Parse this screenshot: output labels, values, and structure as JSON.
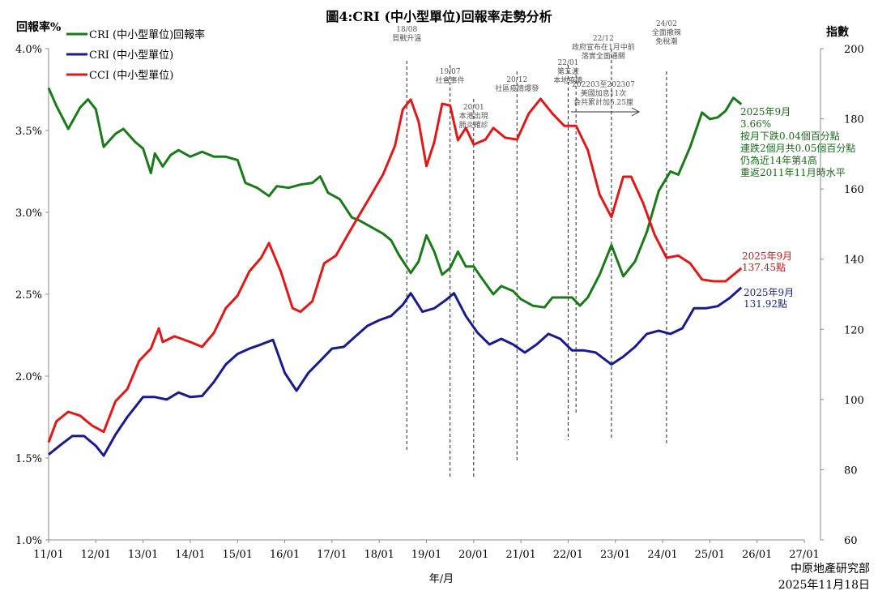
{
  "chart_data": {
    "type": "line",
    "title": "圖4:CRI (中小型單位)回報率走勢分析",
    "ylabel_left": "回報率%",
    "ylabel_right": "指數",
    "xlabel": "年/月",
    "ylim_left": [
      1.0,
      4.0
    ],
    "ylim_right": [
      60,
      200
    ],
    "xlim": [
      "2011-01",
      "2027-01"
    ],
    "y_ticks_left": [
      "1.0%",
      "1.5%",
      "2.0%",
      "2.5%",
      "3.0%",
      "3.5%",
      "4.0%"
    ],
    "y_ticks_right": [
      "60",
      "80",
      "100",
      "120",
      "140",
      "160",
      "180",
      "200"
    ],
    "x_ticks": [
      "11/01",
      "12/01",
      "13/01",
      "14/01",
      "15/01",
      "16/01",
      "17/01",
      "18/01",
      "19/01",
      "20/01",
      "21/01",
      "22/01",
      "23/01",
      "24/01",
      "25/01",
      "26/01",
      "27/01"
    ],
    "grid": false,
    "legend_placement": "top-left",
    "series": [
      {
        "name": "CRI (中小型單位)回報率",
        "axis": "left",
        "color": "#1a7a1a",
        "points": [
          [
            "2011-01",
            3.76
          ],
          [
            "2011-03",
            3.65
          ],
          [
            "2011-06",
            3.51
          ],
          [
            "2011-09",
            3.64
          ],
          [
            "2011-11",
            3.69
          ],
          [
            "2012-01",
            3.63
          ],
          [
            "2012-03",
            3.4
          ],
          [
            "2012-06",
            3.48
          ],
          [
            "2012-08",
            3.51
          ],
          [
            "2012-11",
            3.43
          ],
          [
            "2013-01",
            3.39
          ],
          [
            "2013-03",
            3.24
          ],
          [
            "2013-04",
            3.36
          ],
          [
            "2013-06",
            3.28
          ],
          [
            "2013-08",
            3.35
          ],
          [
            "2013-10",
            3.38
          ],
          [
            "2014-01",
            3.34
          ],
          [
            "2014-04",
            3.37
          ],
          [
            "2014-07",
            3.34
          ],
          [
            "2014-10",
            3.34
          ],
          [
            "2015-01",
            3.32
          ],
          [
            "2015-03",
            3.18
          ],
          [
            "2015-06",
            3.15
          ],
          [
            "2015-09",
            3.1
          ],
          [
            "2015-11",
            3.16
          ],
          [
            "2016-02",
            3.15
          ],
          [
            "2016-05",
            3.17
          ],
          [
            "2016-08",
            3.18
          ],
          [
            "2016-10",
            3.22
          ],
          [
            "2016-12",
            3.12
          ],
          [
            "2017-03",
            3.08
          ],
          [
            "2017-06",
            2.97
          ],
          [
            "2017-08",
            2.95
          ],
          [
            "2017-11",
            2.91
          ],
          [
            "2018-02",
            2.87
          ],
          [
            "2018-04",
            2.83
          ],
          [
            "2018-06",
            2.74
          ],
          [
            "2018-09",
            2.63
          ],
          [
            "2018-11",
            2.7
          ],
          [
            "2019-01",
            2.86
          ],
          [
            "2019-03",
            2.76
          ],
          [
            "2019-05",
            2.62
          ],
          [
            "2019-07",
            2.66
          ],
          [
            "2019-09",
            2.76
          ],
          [
            "2019-11",
            2.67
          ],
          [
            "2020-01",
            2.67
          ],
          [
            "2020-03",
            2.6
          ],
          [
            "2020-06",
            2.5
          ],
          [
            "2020-08",
            2.55
          ],
          [
            "2020-11",
            2.52
          ],
          [
            "2021-01",
            2.47
          ],
          [
            "2021-04",
            2.43
          ],
          [
            "2021-07",
            2.42
          ],
          [
            "2021-09",
            2.48
          ],
          [
            "2021-12",
            2.48
          ],
          [
            "2022-02",
            2.48
          ],
          [
            "2022-04",
            2.43
          ],
          [
            "2022-06",
            2.48
          ],
          [
            "2022-09",
            2.62
          ],
          [
            "2022-12",
            2.8
          ],
          [
            "2023-03",
            2.61
          ],
          [
            "2023-06",
            2.7
          ],
          [
            "2023-09",
            2.88
          ],
          [
            "2023-12",
            3.13
          ],
          [
            "2024-03",
            3.25
          ],
          [
            "2024-05",
            3.23
          ],
          [
            "2024-08",
            3.4
          ],
          [
            "2024-11",
            3.61
          ],
          [
            "2025-01",
            3.57
          ],
          [
            "2025-03",
            3.58
          ],
          [
            "2025-05",
            3.62
          ],
          [
            "2025-07",
            3.7
          ],
          [
            "2025-09",
            3.66
          ]
        ]
      },
      {
        "name": "CRI (中小型單位)",
        "axis": "right",
        "color": "#1a1a8c",
        "points": [
          [
            "2011-01",
            84.3
          ],
          [
            "2011-04",
            87
          ],
          [
            "2011-07",
            89.6
          ],
          [
            "2011-10",
            89.6
          ],
          [
            "2012-01",
            86.8
          ],
          [
            "2012-03",
            84
          ],
          [
            "2012-06",
            90
          ],
          [
            "2012-09",
            95
          ],
          [
            "2013-01",
            100.7
          ],
          [
            "2013-04",
            100.7
          ],
          [
            "2013-07",
            100
          ],
          [
            "2013-10",
            102
          ],
          [
            "2014-01",
            100.7
          ],
          [
            "2014-04",
            101
          ],
          [
            "2014-07",
            105
          ],
          [
            "2014-10",
            110
          ],
          [
            "2015-01",
            113
          ],
          [
            "2015-04",
            114.5
          ],
          [
            "2015-07",
            115.7
          ],
          [
            "2015-10",
            117
          ],
          [
            "2016-01",
            107.6
          ],
          [
            "2016-04",
            102.5
          ],
          [
            "2016-07",
            107.6
          ],
          [
            "2016-10",
            111
          ],
          [
            "2017-01",
            114.5
          ],
          [
            "2017-04",
            115
          ],
          [
            "2017-07",
            118
          ],
          [
            "2017-10",
            121
          ],
          [
            "2018-01",
            122.6
          ],
          [
            "2018-04",
            123.8
          ],
          [
            "2018-07",
            127
          ],
          [
            "2018-09",
            130.3
          ],
          [
            "2018-12",
            125
          ],
          [
            "2019-03",
            126
          ],
          [
            "2019-06",
            128.4
          ],
          [
            "2019-08",
            130.3
          ],
          [
            "2019-11",
            123.8
          ],
          [
            "2020-02",
            119
          ],
          [
            "2020-05",
            115.7
          ],
          [
            "2020-08",
            117.3
          ],
          [
            "2020-11",
            115.7
          ],
          [
            "2021-02",
            113.4
          ],
          [
            "2021-05",
            115.7
          ],
          [
            "2021-08",
            118.7
          ],
          [
            "2021-11",
            117.3
          ],
          [
            "2022-02",
            114
          ],
          [
            "2022-05",
            114
          ],
          [
            "2022-08",
            113.4
          ],
          [
            "2022-12",
            110
          ],
          [
            "2023-03",
            112.2
          ],
          [
            "2023-06",
            115
          ],
          [
            "2023-09",
            118.7
          ],
          [
            "2023-12",
            119.6
          ],
          [
            "2024-03",
            118.7
          ],
          [
            "2024-06",
            120.3
          ],
          [
            "2024-09",
            126
          ],
          [
            "2024-12",
            126
          ],
          [
            "2025-03",
            126.6
          ],
          [
            "2025-06",
            128.9
          ],
          [
            "2025-09",
            131.92
          ]
        ]
      },
      {
        "name": "CCI (中小型單位)",
        "axis": "right",
        "color": "#e01818",
        "points": [
          [
            "2011-01",
            87.8
          ],
          [
            "2011-03",
            93.8
          ],
          [
            "2011-06",
            96.5
          ],
          [
            "2011-09",
            95.4
          ],
          [
            "2011-12",
            92.6
          ],
          [
            "2012-03",
            90.8
          ],
          [
            "2012-06",
            99.5
          ],
          [
            "2012-09",
            103
          ],
          [
            "2012-12",
            111
          ],
          [
            "2013-03",
            114.5
          ],
          [
            "2013-05",
            120.3
          ],
          [
            "2013-06",
            116.4
          ],
          [
            "2013-09",
            118
          ],
          [
            "2014-01",
            116.4
          ],
          [
            "2014-04",
            115
          ],
          [
            "2014-07",
            119
          ],
          [
            "2014-10",
            126
          ],
          [
            "2015-01",
            129.6
          ],
          [
            "2015-04",
            136.5
          ],
          [
            "2015-07",
            140.4
          ],
          [
            "2015-09",
            144.6
          ],
          [
            "2015-12",
            136.5
          ],
          [
            "2016-03",
            126
          ],
          [
            "2016-05",
            125
          ],
          [
            "2016-08",
            128
          ],
          [
            "2016-11",
            138.8
          ],
          [
            "2017-02",
            141
          ],
          [
            "2017-05",
            146.9
          ],
          [
            "2017-08",
            152.7
          ],
          [
            "2017-11",
            158.4
          ],
          [
            "2018-02",
            164.2
          ],
          [
            "2018-05",
            172.3
          ],
          [
            "2018-07",
            182.7
          ],
          [
            "2018-09",
            185.5
          ],
          [
            "2018-11",
            179.2
          ],
          [
            "2019-01",
            166.5
          ],
          [
            "2019-03",
            173.4
          ],
          [
            "2019-05",
            184.3
          ],
          [
            "2019-07",
            183.8
          ],
          [
            "2019-09",
            173.9
          ],
          [
            "2019-11",
            177.4
          ],
          [
            "2020-01",
            172.7
          ],
          [
            "2020-04",
            174.1
          ],
          [
            "2020-06",
            177.4
          ],
          [
            "2020-09",
            174.6
          ],
          [
            "2020-12",
            174.1
          ],
          [
            "2021-03",
            181.5
          ],
          [
            "2021-06",
            185.7
          ],
          [
            "2021-09",
            181.5
          ],
          [
            "2021-12",
            178
          ],
          [
            "2022-03",
            178
          ],
          [
            "2022-06",
            171.1
          ],
          [
            "2022-09",
            158.4
          ],
          [
            "2022-12",
            152
          ],
          [
            "2023-03",
            163.5
          ],
          [
            "2023-05",
            163.5
          ],
          [
            "2023-08",
            156.1
          ],
          [
            "2023-11",
            146.9
          ],
          [
            "2024-02",
            140.4
          ],
          [
            "2024-05",
            141
          ],
          [
            "2024-08",
            138.8
          ],
          [
            "2024-11",
            134.2
          ],
          [
            "2025-02",
            133.7
          ],
          [
            "2025-05",
            133.7
          ],
          [
            "2025-09",
            137.45
          ]
        ]
      }
    ],
    "events": [
      {
        "date": "2018-08",
        "lines": [
          "18/08",
          "貿戰升溫"
        ]
      },
      {
        "date": "2019-07",
        "lines": [
          "19/07",
          "社會事件"
        ]
      },
      {
        "date": "2020-01",
        "lines": [
          "20/01",
          "本港出現",
          "肺炎確診"
        ]
      },
      {
        "date": "2020-12",
        "lines": [
          "20/12",
          "社區疫情爆發"
        ]
      },
      {
        "date": "2022-01",
        "lines": [
          "22/01",
          "第五波",
          "本地疫情"
        ]
      },
      {
        "date": "2022-03",
        "lines": []
      },
      {
        "date": "2022-12",
        "lines": [
          "22/12",
          "政府宣布在1月中前",
          "落實全面通關"
        ]
      },
      {
        "date": "2024-02",
        "lines": [
          "24/02",
          "全面撤辣",
          "免稅潮"
        ]
      }
    ],
    "rate_hike_note": [
      "202203至202307",
      "美國加息11次",
      "合共累計加5.25厘"
    ],
    "annotations": {
      "green": [
        "2025年9月",
        "3.66%",
        "按月下跌0.04個百分點",
        "連跌2個月共0.05個百分點",
        "仍為近14年第4高",
        "重返2011年11月時水平"
      ],
      "red": [
        "2025年9月",
        "137.45點"
      ],
      "blue": [
        "2025年9月",
        "131.92點"
      ]
    },
    "source": [
      "中原地產研究部",
      "2025年11月18日"
    ]
  }
}
